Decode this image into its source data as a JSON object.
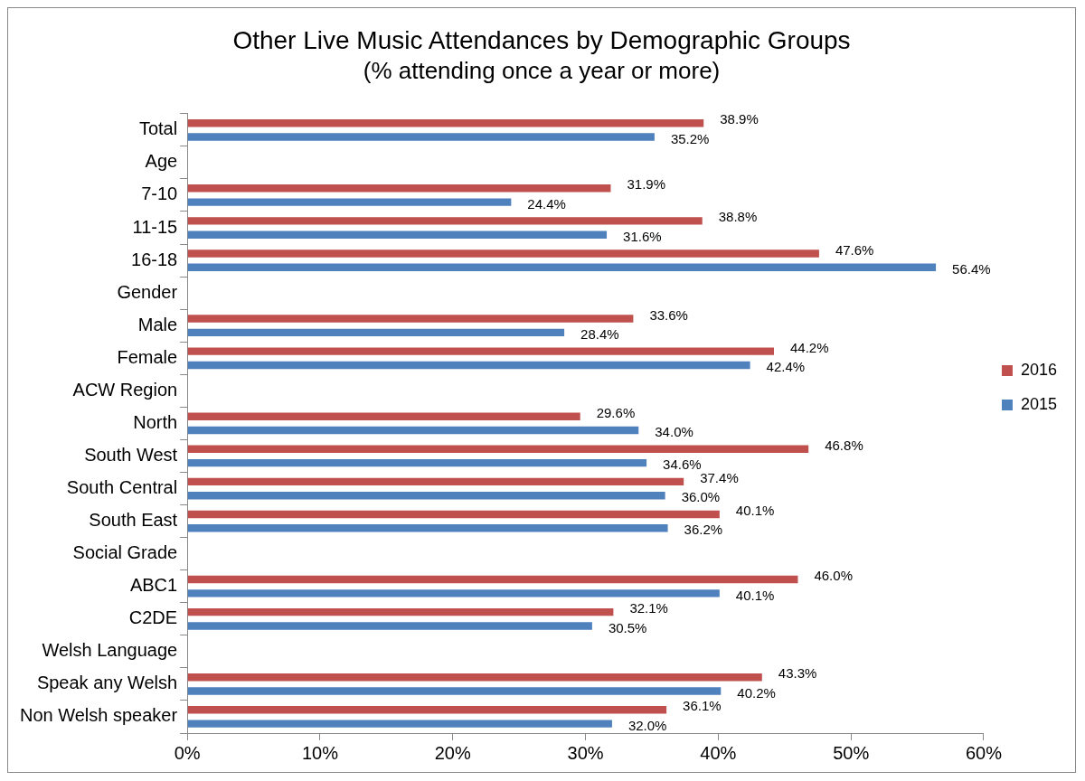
{
  "chart_data": {
    "type": "bar",
    "orientation": "horizontal",
    "title": "Other Live Music Attendances by Demographic Groups",
    "subtitle": "(% attending once a year or more)",
    "categories": [
      "Total",
      "Age",
      "7-10",
      "11-15",
      "16-18",
      "Gender",
      "Male",
      "Female",
      "ACW Region",
      "North",
      "South West",
      "South Central",
      "South East",
      "Social Grade",
      "ABC1",
      "C2DE",
      "Welsh Language",
      "Speak any Welsh",
      "Non Welsh speaker"
    ],
    "series": [
      {
        "name": "2016",
        "color": "#c0504d",
        "values": [
          38.9,
          null,
          31.9,
          38.8,
          47.6,
          null,
          33.6,
          44.2,
          null,
          29.6,
          46.8,
          37.4,
          40.1,
          null,
          46.0,
          32.1,
          null,
          43.3,
          36.1
        ],
        "value_labels": [
          "38.9%",
          null,
          "31.9%",
          "38.8%",
          "47.6%",
          null,
          "33.6%",
          "44.2%",
          null,
          "29.6%",
          "46.8%",
          "37.4%",
          "40.1%",
          null,
          "46.0%",
          "32.1%",
          null,
          "43.3%",
          "36.1%"
        ]
      },
      {
        "name": "2015",
        "color": "#4f81bd",
        "values": [
          35.2,
          null,
          24.4,
          31.6,
          56.4,
          null,
          28.4,
          42.4,
          null,
          34.0,
          34.6,
          36.0,
          36.2,
          null,
          40.1,
          30.5,
          null,
          40.2,
          32.0
        ],
        "value_labels": [
          "35.2%",
          null,
          "24.4%",
          "31.6%",
          "56.4%",
          null,
          "28.4%",
          "42.4%",
          null,
          "34.0%",
          "34.6%",
          "36.0%",
          "36.2%",
          null,
          "40.1%",
          "30.5%",
          null,
          "40.2%",
          "32.0%"
        ]
      }
    ],
    "xlim": [
      0,
      60
    ],
    "xticks": [
      {
        "value": 0,
        "label": "0%"
      },
      {
        "value": 10,
        "label": "10%"
      },
      {
        "value": 20,
        "label": "20%"
      },
      {
        "value": 30,
        "label": "30%"
      },
      {
        "value": 40,
        "label": "40%"
      },
      {
        "value": 50,
        "label": "50%"
      },
      {
        "value": 60,
        "label": "60%"
      }
    ],
    "grid": false,
    "legend": "right"
  }
}
